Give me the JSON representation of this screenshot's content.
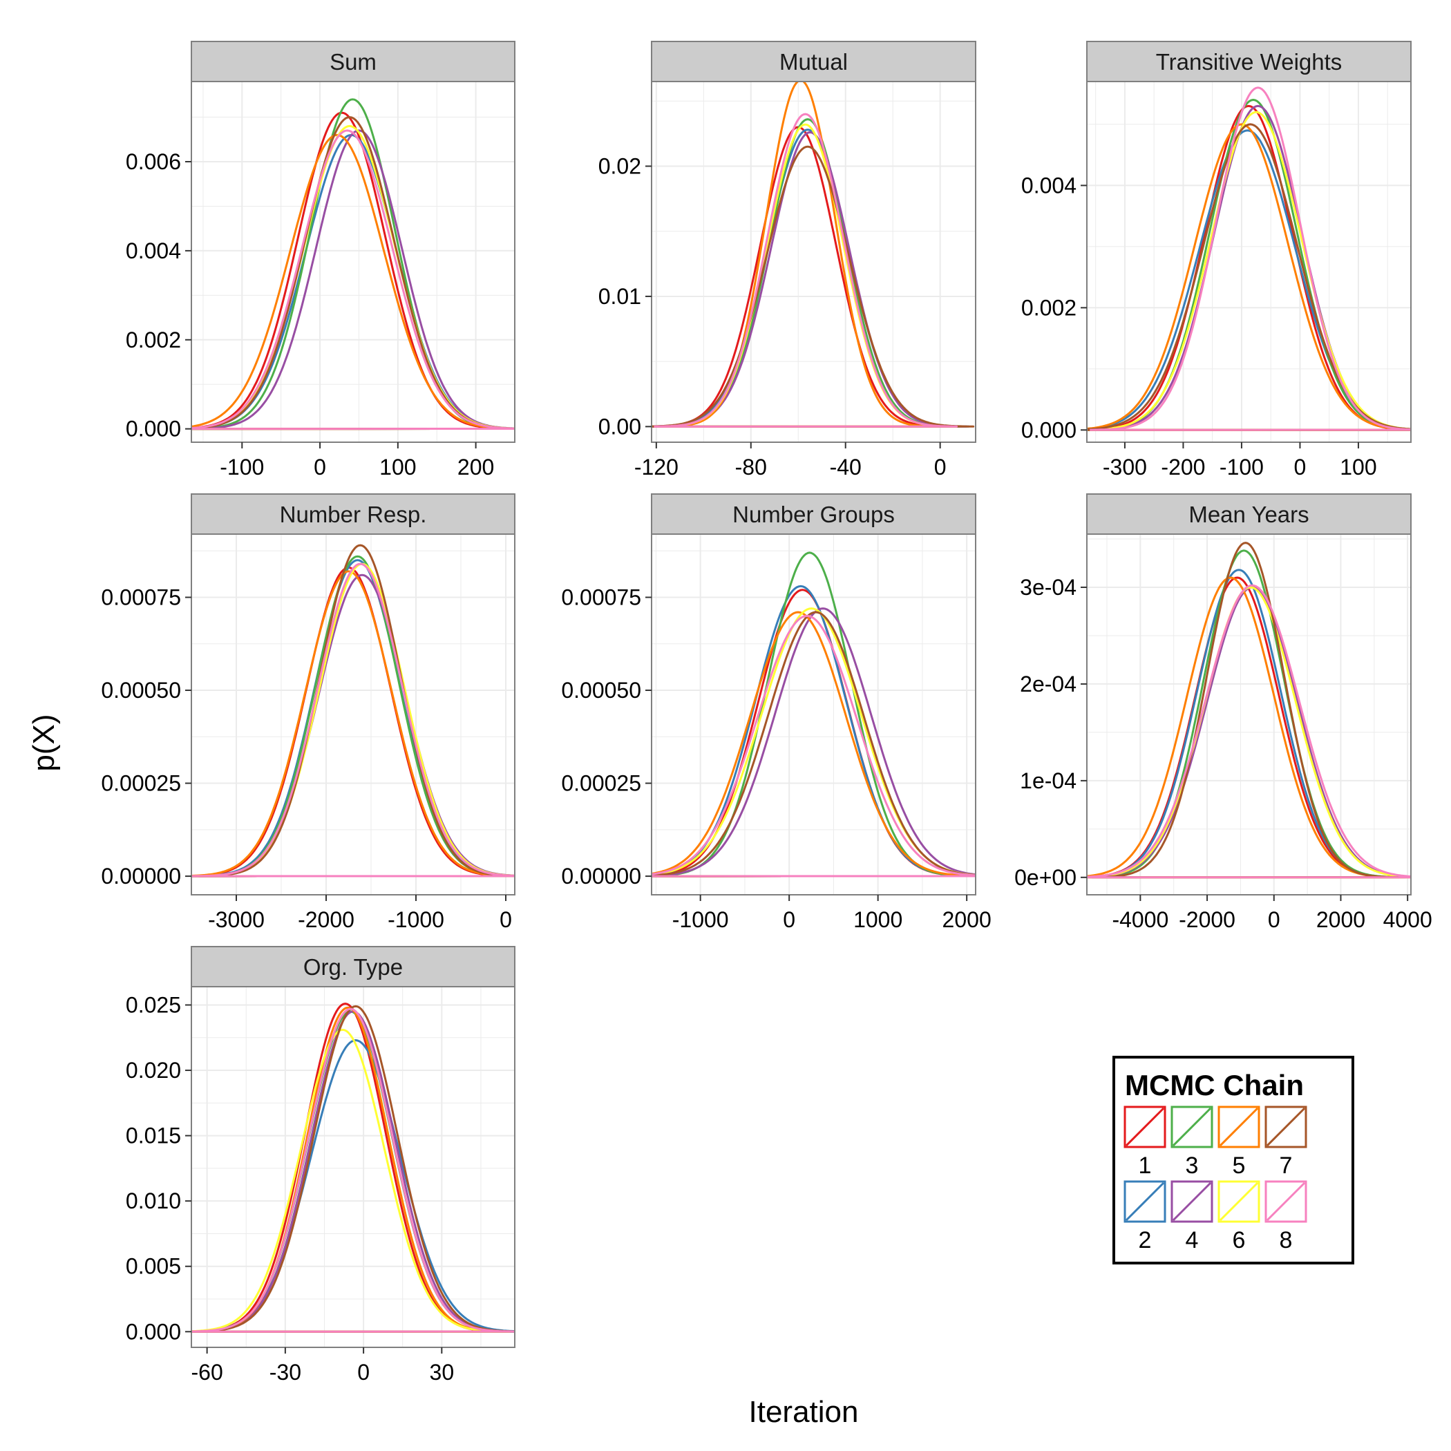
{
  "chart_data": {
    "type": "line",
    "x_axis_title": "Iteration",
    "y_axis_title": "p(X)",
    "colors": {
      "panel_background": "#ffffff",
      "grid": "#ebebeb",
      "strip_fill": "#cccccc",
      "border": "#7f7f7f"
    },
    "legend": {
      "title": "MCMC Chain",
      "placement": "bottom-right",
      "items": [
        {
          "label": "1",
          "color": "#E41A1C"
        },
        {
          "label": "2",
          "color": "#377EB8"
        },
        {
          "label": "3",
          "color": "#4DAF4A"
        },
        {
          "label": "4",
          "color": "#984EA3"
        },
        {
          "label": "5",
          "color": "#FF7F00"
        },
        {
          "label": "6",
          "color": "#FFFF33"
        },
        {
          "label": "7",
          "color": "#A65628"
        },
        {
          "label": "8",
          "color": "#F781BF"
        }
      ]
    },
    "panels": [
      {
        "title": "Sum",
        "xlim": [
          -165,
          250
        ],
        "ylim": [
          -0.0003,
          0.0078
        ],
        "xticks": [
          -100,
          0,
          100,
          200
        ],
        "xtick_labels": [
          "-100",
          "0",
          "100",
          "200"
        ],
        "yticks": [
          0,
          0.002,
          0.004,
          0.006
        ],
        "ytick_labels": [
          "0.000",
          "0.002",
          "0.004",
          "0.006"
        ],
        "series": [
          {
            "chain": "1",
            "mean": 28,
            "sd": 56,
            "peak": 0.0071
          },
          {
            "chain": "2",
            "mean": 40,
            "sd": 58,
            "peak": 0.0066
          },
          {
            "chain": "3",
            "mean": 42,
            "sd": 54,
            "peak": 0.0074
          },
          {
            "chain": "4",
            "mean": 50,
            "sd": 55,
            "peak": 0.0067
          },
          {
            "chain": "5",
            "mean": 22,
            "sd": 60,
            "peak": 0.0066
          },
          {
            "chain": "6",
            "mean": 38,
            "sd": 58,
            "peak": 0.0068
          },
          {
            "chain": "7",
            "mean": 38,
            "sd": 57,
            "peak": 0.007
          },
          {
            "chain": "8",
            "mean": 35,
            "sd": 58,
            "peak": 0.0067
          }
        ]
      },
      {
        "title": "Mutual",
        "xlim": [
          -122,
          15
        ],
        "ylim": [
          -0.0012,
          0.0265
        ],
        "xticks": [
          -120,
          -80,
          -40,
          0
        ],
        "xtick_labels": [
          "-120",
          "-80",
          "-40",
          "0"
        ],
        "yticks": [
          0,
          0.01,
          0.02
        ],
        "ytick_labels": [
          "0.00",
          "0.01",
          "0.02"
        ],
        "series": [
          {
            "chain": "1",
            "mean": -60,
            "sd": 16,
            "peak": 0.023
          },
          {
            "chain": "2",
            "mean": -56,
            "sd": 17,
            "peak": 0.0228
          },
          {
            "chain": "3",
            "mean": -56,
            "sd": 16,
            "peak": 0.0236
          },
          {
            "chain": "4",
            "mean": -55,
            "sd": 16.5,
            "peak": 0.0226
          },
          {
            "chain": "5",
            "mean": -59,
            "sd": 14.5,
            "peak": 0.0266
          },
          {
            "chain": "6",
            "mean": -57,
            "sd": 16,
            "peak": 0.0232
          },
          {
            "chain": "7",
            "mean": -56,
            "sd": 17.5,
            "peak": 0.0215
          },
          {
            "chain": "8",
            "mean": -57,
            "sd": 16,
            "peak": 0.024
          }
        ]
      },
      {
        "title": "Transitive Weights",
        "xlim": [
          -365,
          190
        ],
        "ylim": [
          -0.0002,
          0.0057
        ],
        "xticks": [
          -300,
          -200,
          -100,
          0,
          100
        ],
        "xtick_labels": [
          "-300",
          "-200",
          "-100",
          "0",
          "100"
        ],
        "yticks": [
          0,
          0.002,
          0.004
        ],
        "ytick_labels": [
          "0.000",
          "0.002",
          "0.004"
        ],
        "series": [
          {
            "chain": "1",
            "mean": -88,
            "sd": 75,
            "peak": 0.0053
          },
          {
            "chain": "2",
            "mean": -90,
            "sd": 82,
            "peak": 0.0049
          },
          {
            "chain": "3",
            "mean": -80,
            "sd": 74,
            "peak": 0.0054
          },
          {
            "chain": "4",
            "mean": -72,
            "sd": 75,
            "peak": 0.0053
          },
          {
            "chain": "5",
            "mean": -100,
            "sd": 80,
            "peak": 0.005
          },
          {
            "chain": "6",
            "mean": -75,
            "sd": 77,
            "peak": 0.0052
          },
          {
            "chain": "7",
            "mean": -85,
            "sd": 80,
            "peak": 0.005
          },
          {
            "chain": "8",
            "mean": -72,
            "sd": 72,
            "peak": 0.0056
          }
        ]
      },
      {
        "title": "Number Resp.",
        "xlim": [
          -3500,
          100
        ],
        "ylim": [
          -5e-05,
          0.00092
        ],
        "xticks": [
          -3000,
          -2000,
          -1000,
          0
        ],
        "xtick_labels": [
          "-3000",
          "-2000",
          "-1000",
          "0"
        ],
        "yticks": [
          0,
          0.00025,
          0.0005,
          0.00075
        ],
        "ytick_labels": [
          "0.00000",
          "0.00025",
          "0.00050",
          "0.00075"
        ],
        "series": [
          {
            "chain": "1",
            "mean": -1750,
            "sd": 470,
            "peak": 0.00083
          },
          {
            "chain": "2",
            "mean": -1650,
            "sd": 470,
            "peak": 0.00085
          },
          {
            "chain": "3",
            "mean": -1650,
            "sd": 460,
            "peak": 0.00086
          },
          {
            "chain": "4",
            "mean": -1600,
            "sd": 480,
            "peak": 0.00081
          },
          {
            "chain": "5",
            "mean": -1750,
            "sd": 480,
            "peak": 0.00082
          },
          {
            "chain": "6",
            "mean": -1600,
            "sd": 470,
            "peak": 0.00084
          },
          {
            "chain": "7",
            "mean": -1620,
            "sd": 450,
            "peak": 0.00089
          },
          {
            "chain": "8",
            "mean": -1620,
            "sd": 470,
            "peak": 0.00084
          }
        ]
      },
      {
        "title": "Number Groups",
        "xlim": [
          -1550,
          2100
        ],
        "ylim": [
          -5e-05,
          0.00092
        ],
        "xticks": [
          -1000,
          0,
          1000,
          2000
        ],
        "xtick_labels": [
          "-1000",
          "0",
          "1000",
          "2000"
        ],
        "yticks": [
          0,
          0.00025,
          0.0005,
          0.00075
        ],
        "ytick_labels": [
          "0.00000",
          "0.00025",
          "0.00050",
          "0.00075"
        ],
        "series": [
          {
            "chain": "1",
            "mean": 150,
            "sd": 500,
            "peak": 0.00077
          },
          {
            "chain": "2",
            "mean": 130,
            "sd": 510,
            "peak": 0.00078
          },
          {
            "chain": "3",
            "mean": 230,
            "sd": 470,
            "peak": 0.00087
          },
          {
            "chain": "4",
            "mean": 380,
            "sd": 540,
            "peak": 0.00072
          },
          {
            "chain": "5",
            "mean": 100,
            "sd": 540,
            "peak": 0.00071
          },
          {
            "chain": "6",
            "mean": 250,
            "sd": 560,
            "peak": 0.00072
          },
          {
            "chain": "7",
            "mean": 300,
            "sd": 540,
            "peak": 0.00071
          },
          {
            "chain": "8",
            "mean": 200,
            "sd": 560,
            "peak": 0.0007
          }
        ]
      },
      {
        "title": "Mean Years",
        "xlim": [
          -5600,
          4100
        ],
        "ylim": [
          -1.8e-05,
          0.000355
        ],
        "xticks": [
          -4000,
          -2000,
          0,
          2000,
          4000
        ],
        "xtick_labels": [
          "-4000",
          "-2000",
          "0",
          "2000",
          "4000"
        ],
        "yticks": [
          0,
          0.0001,
          0.0002,
          0.0003
        ],
        "ytick_labels": [
          "0e+00",
          "1e-04",
          "2e-04",
          "3e-04"
        ],
        "series": [
          {
            "chain": "1",
            "mean": -1100,
            "sd": 1250,
            "peak": 0.00031
          },
          {
            "chain": "2",
            "mean": -1050,
            "sd": 1250,
            "peak": 0.000318
          },
          {
            "chain": "3",
            "mean": -900,
            "sd": 1200,
            "peak": 0.000338
          },
          {
            "chain": "4",
            "mean": -650,
            "sd": 1350,
            "peak": 0.0003
          },
          {
            "chain": "5",
            "mean": -1300,
            "sd": 1300,
            "peak": 0.00031
          },
          {
            "chain": "6",
            "mean": -700,
            "sd": 1350,
            "peak": 0.0003
          },
          {
            "chain": "7",
            "mean": -850,
            "sd": 1150,
            "peak": 0.000346
          },
          {
            "chain": "8",
            "mean": -650,
            "sd": 1400,
            "peak": 0.000302
          }
        ]
      },
      {
        "title": "Org. Type",
        "xlim": [
          -66,
          58
        ],
        "ylim": [
          -0.0012,
          0.0264
        ],
        "xticks": [
          -60,
          -30,
          0,
          30
        ],
        "xtick_labels": [
          "-60",
          "-30",
          "0",
          "30"
        ],
        "yticks": [
          0,
          0.005,
          0.01,
          0.015,
          0.02,
          0.025
        ],
        "ytick_labels": [
          "0.000",
          "0.005",
          "0.010",
          "0.015",
          "0.020",
          "0.025"
        ],
        "series": [
          {
            "chain": "1",
            "mean": -7,
            "sd": 15.5,
            "peak": 0.0251
          },
          {
            "chain": "2",
            "mean": -3,
            "sd": 17,
            "peak": 0.0223
          },
          {
            "chain": "3",
            "mean": -5,
            "sd": 16,
            "peak": 0.0245
          },
          {
            "chain": "4",
            "mean": -4,
            "sd": 16,
            "peak": 0.0245
          },
          {
            "chain": "5",
            "mean": -6,
            "sd": 15.5,
            "peak": 0.0248
          },
          {
            "chain": "6",
            "mean": -8,
            "sd": 16,
            "peak": 0.0231
          },
          {
            "chain": "7",
            "mean": -3,
            "sd": 16,
            "peak": 0.0249
          },
          {
            "chain": "8",
            "mean": -5,
            "sd": 16,
            "peak": 0.0247
          }
        ]
      }
    ]
  }
}
